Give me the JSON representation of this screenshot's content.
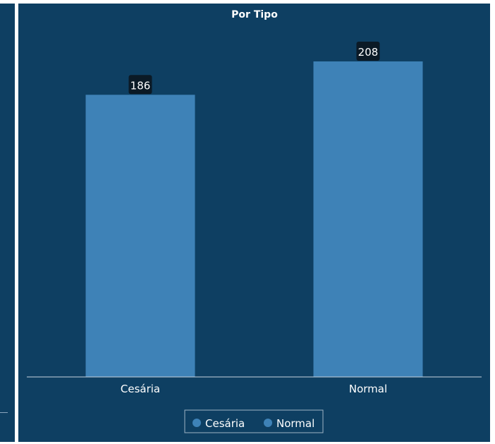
{
  "chart_data": {
    "type": "bar",
    "title": "Por Tipo",
    "categories": [
      "Cesária",
      "Normal"
    ],
    "values": [
      186,
      208
    ],
    "ylim": [
      0,
      208
    ],
    "grid": false,
    "legend": {
      "placement": "bottom-center",
      "entries": [
        "Cesária",
        "Normal"
      ]
    },
    "colors": {
      "background": "#0e3f62",
      "bar": "#3e82b7",
      "data_label_bg": "#0b1a26",
      "text": "#ffffff",
      "axis": "#c8d3dd"
    }
  }
}
